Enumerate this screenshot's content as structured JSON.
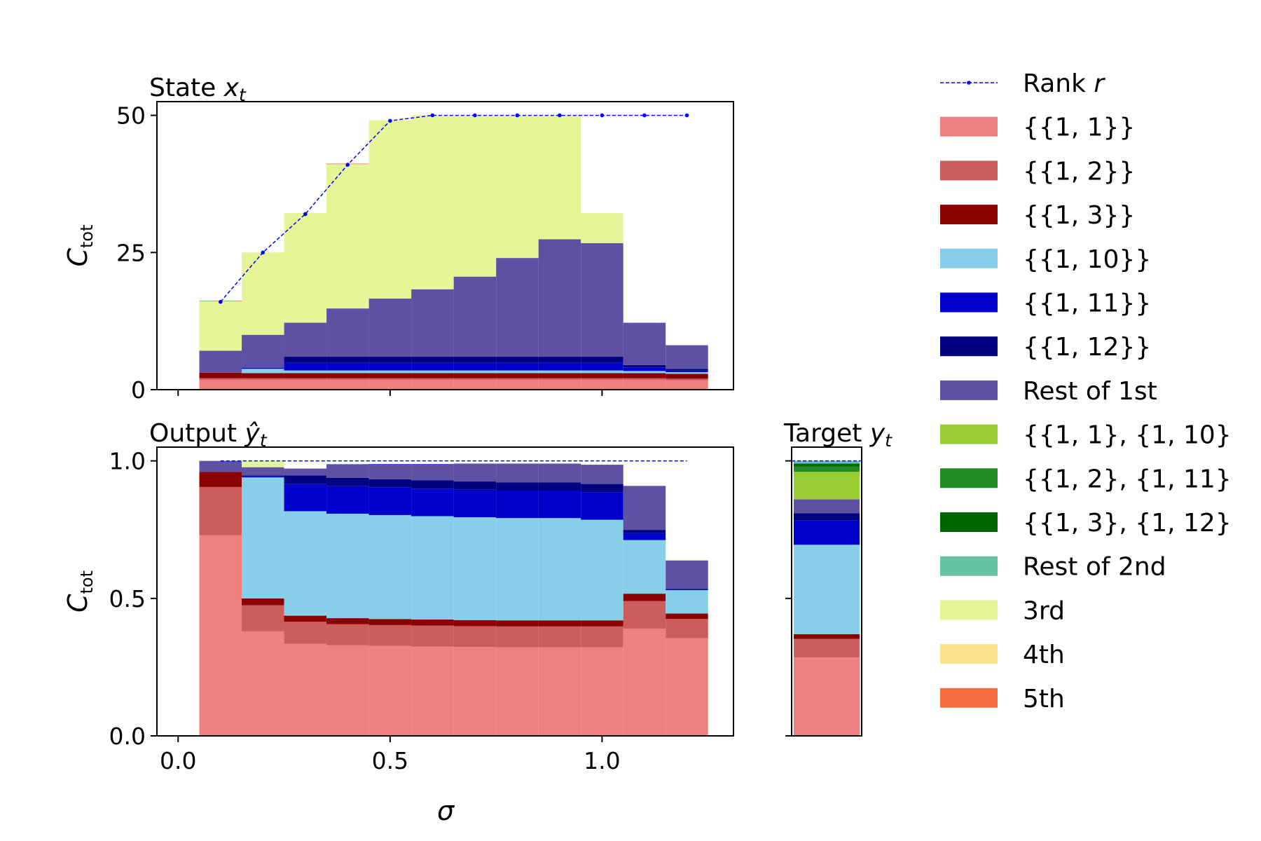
{
  "figure": {
    "xlabel": "σ",
    "ylabel_main": "C",
    "ylabel_sub": "tot"
  },
  "colors": {
    "c11": "#f08080",
    "c12": "#cd5c5c",
    "c13": "#8b0000",
    "c110": "#87ceeb",
    "c111": "#0000cd",
    "c112": "#000080",
    "rest1": "#5e50a2",
    "p1": "#9acd32",
    "p2": "#228b22",
    "p3": "#006400",
    "rest2": "#66c2a5",
    "third": "#e6f598",
    "fourth": "#fee08b",
    "fifth": "#f46d43",
    "rank": "#0000ff"
  },
  "legend": [
    {
      "label": "Rank r",
      "color_key": "rank",
      "kind": "line"
    },
    {
      "label": "{{1, 1}}",
      "color_key": "c11"
    },
    {
      "label": "{{1, 2}}",
      "color_key": "c12"
    },
    {
      "label": "{{1, 3}}",
      "color_key": "c13"
    },
    {
      "label": "{{1, 10}}",
      "color_key": "c110"
    },
    {
      "label": "{{1, 11}}",
      "color_key": "c111"
    },
    {
      "label": "{{1, 12}}",
      "color_key": "c112"
    },
    {
      "label": "Rest of 1st",
      "color_key": "rest1"
    },
    {
      "label": "{{1, 1}, {1, 10}",
      "color_key": "p1"
    },
    {
      "label": "{{1, 2}, {1, 11}",
      "color_key": "p2"
    },
    {
      "label": "{{1, 3}, {1, 12}",
      "color_key": "p3"
    },
    {
      "label": "Rest of 2nd",
      "color_key": "rest2"
    },
    {
      "label": "3rd",
      "color_key": "third"
    },
    {
      "label": "4th",
      "color_key": "fourth"
    },
    {
      "label": "5th",
      "color_key": "fifth"
    }
  ],
  "chart_data": [
    {
      "id": "state",
      "type": "bar",
      "stacked": true,
      "title_text": "State ",
      "title_var": "x",
      "title_sub": "t",
      "ylabel": "C_tot",
      "xlim": [
        -0.05,
        1.31
      ],
      "ylim": [
        0,
        52.5
      ],
      "yticks": [
        0,
        25,
        50
      ],
      "xticks": [
        0.0,
        0.5,
        1.0
      ],
      "show_xtick_labels": false,
      "bar_width": 0.1,
      "x": [
        0.1,
        0.2,
        0.3,
        0.4,
        0.5,
        0.6,
        0.7,
        0.8,
        0.9,
        1.0,
        1.1,
        1.2
      ],
      "series": [
        {
          "name": "{{1, 1}}",
          "color_key": "c11",
          "values": [
            1.8,
            1.8,
            1.8,
            1.8,
            1.8,
            1.8,
            1.8,
            1.8,
            1.8,
            1.8,
            1.8,
            1.7
          ]
        },
        {
          "name": "{{1, 2}}",
          "color_key": "c12",
          "values": [
            0.3,
            0.3,
            0.3,
            0.3,
            0.3,
            0.3,
            0.3,
            0.3,
            0.3,
            0.3,
            0.3,
            0.3
          ]
        },
        {
          "name": "{{1, 3}}",
          "color_key": "c13",
          "values": [
            1.0,
            0.9,
            0.9,
            0.9,
            0.9,
            0.9,
            0.9,
            0.9,
            0.9,
            0.9,
            0.9,
            0.9
          ]
        },
        {
          "name": "{{1, 10}}",
          "color_key": "c110",
          "values": [
            0.0,
            0.8,
            0.5,
            0.5,
            0.5,
            0.5,
            0.5,
            0.5,
            0.5,
            0.5,
            0.4,
            0.3
          ]
        },
        {
          "name": "{{1, 11}}",
          "color_key": "c111",
          "values": [
            0.0,
            0.2,
            1.4,
            1.4,
            1.4,
            1.4,
            1.4,
            1.4,
            1.4,
            1.4,
            0.6,
            0.3
          ]
        },
        {
          "name": "{{1, 12}}",
          "color_key": "c112",
          "values": [
            0.0,
            0.0,
            1.1,
            1.1,
            1.1,
            1.1,
            1.1,
            1.1,
            1.1,
            1.1,
            0.5,
            0.3
          ]
        },
        {
          "name": "Rest of 1st",
          "color_key": "rest1",
          "values": [
            4.0,
            6.0,
            6.2,
            8.8,
            10.6,
            12.3,
            14.6,
            18.0,
            21.4,
            20.7,
            7.7,
            4.3
          ]
        },
        {
          "name": "3rd",
          "color_key": "third",
          "values": [
            9.0,
            15.0,
            20.0,
            26.3,
            32.5,
            31.7,
            29.4,
            26.0,
            22.6,
            5.5,
            0.0,
            0.0
          ]
        },
        {
          "name": "5th",
          "color_key": "fifth",
          "values": [
            0.1,
            0.0,
            0.0,
            0.1,
            0.0,
            0.0,
            0.0,
            0.0,
            0.0,
            0.0,
            0.0,
            0.0
          ]
        }
      ],
      "rank": {
        "name": "Rank r",
        "x": [
          0.1,
          0.2,
          0.3,
          0.4,
          0.5,
          0.6,
          0.7,
          0.8,
          0.9,
          1.0,
          1.1,
          1.2
        ],
        "values": [
          16,
          25,
          32,
          41,
          49,
          50,
          50,
          50,
          50,
          50,
          50,
          50
        ]
      }
    },
    {
      "id": "output",
      "type": "bar",
      "stacked": true,
      "title_text": "Output ",
      "title_var": "ŷ",
      "title_sub": "t",
      "ylabel": "C_tot",
      "xlabel": "σ",
      "xlim": [
        -0.05,
        1.31
      ],
      "ylim": [
        0,
        1.05
      ],
      "yticks": [
        0.0,
        0.5,
        1.0
      ],
      "ytick_labels": [
        "0.0",
        "0.5",
        "1.0"
      ],
      "xticks": [
        0.0,
        0.5,
        1.0
      ],
      "xtick_labels": [
        "0.0",
        "0.5",
        "1.0"
      ],
      "show_xtick_labels": true,
      "bar_width": 0.1,
      "x": [
        0.1,
        0.2,
        0.3,
        0.4,
        0.5,
        0.6,
        0.7,
        0.8,
        0.9,
        1.0,
        1.1,
        1.2
      ],
      "series": [
        {
          "name": "{{1, 1}}",
          "color_key": "c11",
          "values": [
            0.73,
            0.38,
            0.335,
            0.33,
            0.327,
            0.325,
            0.323,
            0.322,
            0.322,
            0.322,
            0.39,
            0.355
          ]
        },
        {
          "name": "{{1, 2}}",
          "color_key": "c12",
          "values": [
            0.175,
            0.095,
            0.08,
            0.076,
            0.076,
            0.076,
            0.076,
            0.076,
            0.076,
            0.076,
            0.1,
            0.07
          ]
        },
        {
          "name": "{{1, 3}}",
          "color_key": "c13",
          "values": [
            0.055,
            0.025,
            0.022,
            0.022,
            0.022,
            0.022,
            0.022,
            0.022,
            0.022,
            0.022,
            0.027,
            0.02
          ]
        },
        {
          "name": "{{1, 10}}",
          "color_key": "c110",
          "values": [
            0.0,
            0.44,
            0.38,
            0.38,
            0.378,
            0.376,
            0.374,
            0.372,
            0.372,
            0.366,
            0.195,
            0.085
          ]
        },
        {
          "name": "{{1, 11}}",
          "color_key": "c111",
          "values": [
            0.0,
            0.005,
            0.1,
            0.1,
            0.1,
            0.1,
            0.1,
            0.1,
            0.1,
            0.1,
            0.025,
            0.003
          ]
        },
        {
          "name": "{{1, 12}}",
          "color_key": "c112",
          "values": [
            0.0,
            0.002,
            0.03,
            0.03,
            0.03,
            0.03,
            0.03,
            0.03,
            0.03,
            0.03,
            0.012,
            0.002
          ]
        },
        {
          "name": "Rest of 1st",
          "color_key": "rest1",
          "values": [
            0.04,
            0.03,
            0.025,
            0.05,
            0.056,
            0.06,
            0.065,
            0.068,
            0.068,
            0.07,
            0.16,
            0.103
          ]
        },
        {
          "name": "3rd",
          "color_key": "third",
          "values": [
            0.0,
            0.022,
            0.0,
            0.0,
            0.0,
            0.0,
            0.0,
            0.0,
            0.0,
            0.0,
            0.0,
            0.002
          ]
        }
      ],
      "rank": {
        "name": "Rank r",
        "x": [
          0.1,
          0.2,
          0.3,
          0.4,
          0.5,
          0.6,
          0.7,
          0.8,
          0.9,
          1.0,
          1.1,
          1.2
        ],
        "values": [
          1.0,
          1.0,
          1.0,
          1.0,
          1.0,
          1.0,
          1.0,
          1.0,
          1.0,
          1.0,
          1.0,
          1.0
        ]
      }
    },
    {
      "id": "target",
      "type": "bar",
      "stacked": true,
      "title_text": "Target ",
      "title_var": "y",
      "title_sub": "t",
      "xlim": [
        0,
        1
      ],
      "ylim": [
        0,
        1.05
      ],
      "yticks": [
        0.0,
        0.5,
        1.0
      ],
      "show_ytick_labels": false,
      "bar_width": 0.94,
      "x": [
        0.5
      ],
      "series": [
        {
          "name": "{{1, 1}}",
          "color_key": "c11",
          "values": [
            0.285
          ]
        },
        {
          "name": "{{1, 2}}",
          "color_key": "c12",
          "values": [
            0.068
          ]
        },
        {
          "name": "{{1, 3}}",
          "color_key": "c13",
          "values": [
            0.017
          ]
        },
        {
          "name": "{{1, 10}}",
          "color_key": "c110",
          "values": [
            0.325
          ]
        },
        {
          "name": "{{1, 11}}",
          "color_key": "c111",
          "values": [
            0.088
          ]
        },
        {
          "name": "{{1, 12}}",
          "color_key": "c112",
          "values": [
            0.027
          ]
        },
        {
          "name": "Rest of 1st",
          "color_key": "rest1",
          "values": [
            0.05
          ]
        },
        {
          "name": "{{1, 1}, {1, 10}",
          "color_key": "p1",
          "values": [
            0.1
          ]
        },
        {
          "name": "{{1, 2}, {1, 11}",
          "color_key": "p2",
          "values": [
            0.02
          ]
        },
        {
          "name": "{{1, 3}, {1, 12}",
          "color_key": "p3",
          "values": [
            0.01
          ]
        },
        {
          "name": "Rest of 2nd",
          "color_key": "rest2",
          "values": [
            0.01
          ]
        }
      ],
      "rank": {
        "name": "Rank r",
        "x": [
          0.0,
          1.0
        ],
        "values": [
          1.0,
          1.0
        ]
      }
    }
  ]
}
